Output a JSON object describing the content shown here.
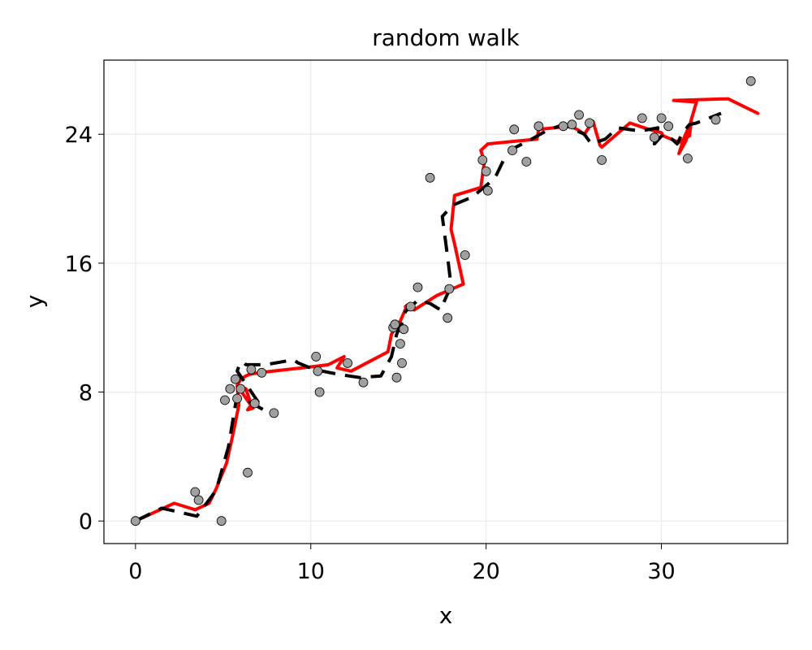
{
  "chart_data": {
    "type": "line",
    "title": "random walk",
    "xlabel": "x",
    "ylabel": "y",
    "xlim": [
      -1.8,
      37.2
    ],
    "ylim": [
      -1.4,
      28.6
    ],
    "xticks": [
      0,
      10,
      20,
      30
    ],
    "yticks": [
      0,
      8,
      16,
      24
    ],
    "grid": true,
    "legend": "none",
    "colors": {
      "solid_line": "#ff0000",
      "dashed_line": "#000000",
      "markers_fill": "#a0a0a0",
      "markers_stroke": "#000000",
      "grid": "#e6e6e6",
      "frame": "#000000"
    },
    "series": [
      {
        "kind": "line",
        "style": "solid",
        "x": [
          0,
          2.2,
          3.4,
          4.2,
          4.6,
          5.2,
          5.6,
          5.9,
          5.8,
          6.3,
          6.6,
          6.4,
          6.7,
          5.8,
          6.0,
          6.3,
          6.5,
          7.0,
          9.5,
          11.0,
          11.9,
          11.5,
          12.3,
          14.4,
          14.6,
          15.1,
          15.5,
          15.4,
          15.9,
          17.2,
          18.7,
          18.2,
          18.0,
          18.2,
          19.1,
          19.7,
          19.9,
          19.7,
          20.1,
          22.9,
          23.0,
          24.8,
          25.2,
          25.6,
          26.1,
          26.5,
          26.6,
          28.2,
          29.3,
          30.0,
          30.1,
          31.0,
          31.6,
          31.7,
          31.3,
          31.0,
          31.4,
          31.7,
          32.0,
          30.7,
          33.8,
          35.5
        ],
        "y": [
          0,
          1.1,
          0.7,
          1.1,
          2.0,
          3.6,
          5.6,
          7.2,
          8.4,
          8.2,
          7.2,
          6.9,
          7.0,
          8.4,
          8.8,
          9.0,
          9.1,
          9.2,
          9.5,
          9.7,
          10.2,
          9.5,
          9.3,
          10.5,
          11.6,
          12.4,
          13.4,
          13.3,
          13.1,
          14.0,
          14.7,
          17.2,
          18.1,
          20.2,
          20.5,
          20.7,
          22.3,
          23.0,
          23.4,
          23.7,
          24.3,
          24.5,
          24.3,
          24.0,
          24.8,
          23.3,
          23.2,
          24.7,
          24.3,
          24.1,
          23.9,
          23.5,
          23.9,
          24.8,
          23.8,
          22.8,
          23.6,
          24.9,
          26.0,
          26.1,
          26.2,
          25.3
        ]
      },
      {
        "kind": "line",
        "style": "dashed",
        "x": [
          0,
          1.5,
          3.5,
          4.6,
          5.3,
          5.7,
          5.8,
          6.5,
          7.3,
          5.8,
          5.9,
          6.1,
          6.3,
          7.4,
          9.0,
          9.3,
          10.2,
          11.6,
          12.8,
          14.0,
          14.6,
          14.9,
          15.3,
          15.4,
          15.8,
          16.1,
          16.8,
          17.4,
          18.0,
          17.8,
          17.5,
          18.1,
          19.2,
          20.1,
          20.3,
          20.6,
          21.0,
          21.3,
          21.7,
          22.6,
          23.4,
          24.4,
          25.6,
          26.0,
          26.8,
          27.5,
          28.8,
          29.8,
          29.6,
          30.1,
          30.6,
          30.9,
          31.2,
          31.6,
          32.0,
          33.4
        ],
        "y": [
          0,
          0.8,
          0.3,
          1.9,
          4.6,
          7.2,
          7.8,
          7.4,
          6.9,
          9.3,
          9.6,
          9.9,
          9.7,
          9.7,
          10.0,
          9.8,
          9.4,
          9.1,
          8.9,
          9.0,
          10.2,
          11.6,
          12.5,
          13.0,
          13.4,
          13.7,
          13.5,
          13.1,
          14.6,
          16.4,
          18.9,
          19.6,
          20.1,
          20.9,
          21.1,
          21.5,
          22.4,
          22.8,
          23.2,
          23.7,
          24.2,
          24.6,
          24.0,
          23.4,
          23.7,
          24.4,
          24.2,
          24.4,
          23.4,
          24.0,
          23.7,
          23.4,
          24.1,
          24.6,
          24.7,
          25.3
        ]
      },
      {
        "kind": "scatter",
        "style": "markers",
        "x": [
          0,
          3.4,
          3.6,
          4.9,
          5.1,
          5.4,
          5.7,
          5.8,
          6.0,
          6.4,
          6.6,
          6.8,
          7.2,
          7.9,
          10.3,
          10.4,
          10.5,
          12.1,
          13.0,
          14.7,
          14.8,
          14.9,
          15.1,
          15.2,
          15.3,
          15.7,
          16.1,
          16.8,
          17.8,
          17.9,
          18.8,
          19.8,
          20.0,
          20.1,
          21.5,
          21.6,
          22.3,
          23.0,
          24.4,
          24.9,
          25.3,
          25.9,
          26.6,
          28.9,
          29.6,
          30.0,
          30.4,
          31.5,
          33.1,
          35.1
        ],
        "y": [
          0,
          1.8,
          1.3,
          0,
          7.5,
          8.2,
          8.8,
          7.6,
          8.2,
          3.0,
          9.4,
          7.3,
          9.2,
          6.7,
          10.2,
          9.3,
          8.0,
          9.8,
          8.6,
          12.0,
          12.2,
          8.9,
          11.0,
          9.8,
          11.9,
          13.3,
          14.5,
          21.3,
          12.6,
          14.4,
          16.5,
          22.4,
          21.7,
          20.5,
          23.0,
          24.3,
          22.3,
          24.5,
          24.5,
          24.6,
          25.2,
          24.7,
          22.4,
          25.0,
          23.8,
          25.0,
          24.5,
          22.5,
          24.9,
          27.3
        ]
      }
    ]
  }
}
